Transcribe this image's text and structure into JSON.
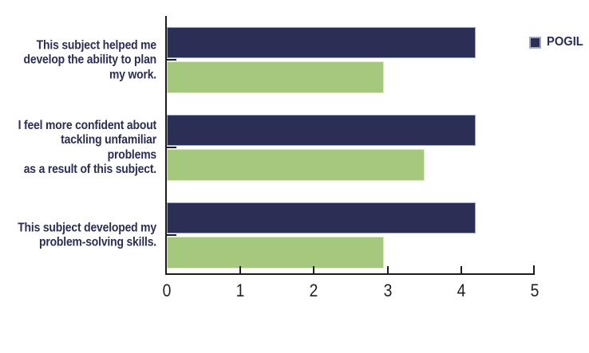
{
  "chart_data": {
    "type": "bar",
    "orientation": "horizontal",
    "title": "",
    "xlabel": "",
    "ylabel": "",
    "xlim": [
      0,
      5
    ],
    "x_ticks": [
      0,
      1,
      2,
      3,
      4,
      5
    ],
    "x_tick_labels": [
      "0",
      "1",
      "2",
      "3",
      "4",
      "5"
    ],
    "grid": false,
    "categories": [
      "This subject helped me develop the ability to plan my work.",
      "I feel more confident about tackling unfamiliar problems as a result of this subject.",
      "This subject developed my problem-solving skills."
    ],
    "categories_lines": [
      [
        "This subject helped me",
        "develop the ability to plan",
        "my work."
      ],
      [
        "I feel more confident about",
        "tackling unfamiliar problems",
        "as a result of this subject."
      ],
      [
        "This subject developed my",
        "problem-solving skills."
      ]
    ],
    "series": [
      {
        "name": "POGIL",
        "color": "#2c2f55",
        "values": [
          4.2,
          4.2,
          4.2
        ]
      },
      {
        "name": "",
        "color": "#a5c87d",
        "values": [
          2.95,
          3.5,
          2.95
        ]
      }
    ],
    "legend": {
      "position": "top-right",
      "entries": [
        {
          "label": "POGIL",
          "color": "#2c2f55"
        }
      ]
    }
  },
  "colors": {
    "pogil_navy": "#2c2f55",
    "navy_border": "#9aa5bf",
    "green": "#a5c87d",
    "green_border": "#dcebc5",
    "axis": "#1d1d1b",
    "label_text": "#2b2e52",
    "tick_text": "#231f20",
    "background": "#ffffff"
  }
}
